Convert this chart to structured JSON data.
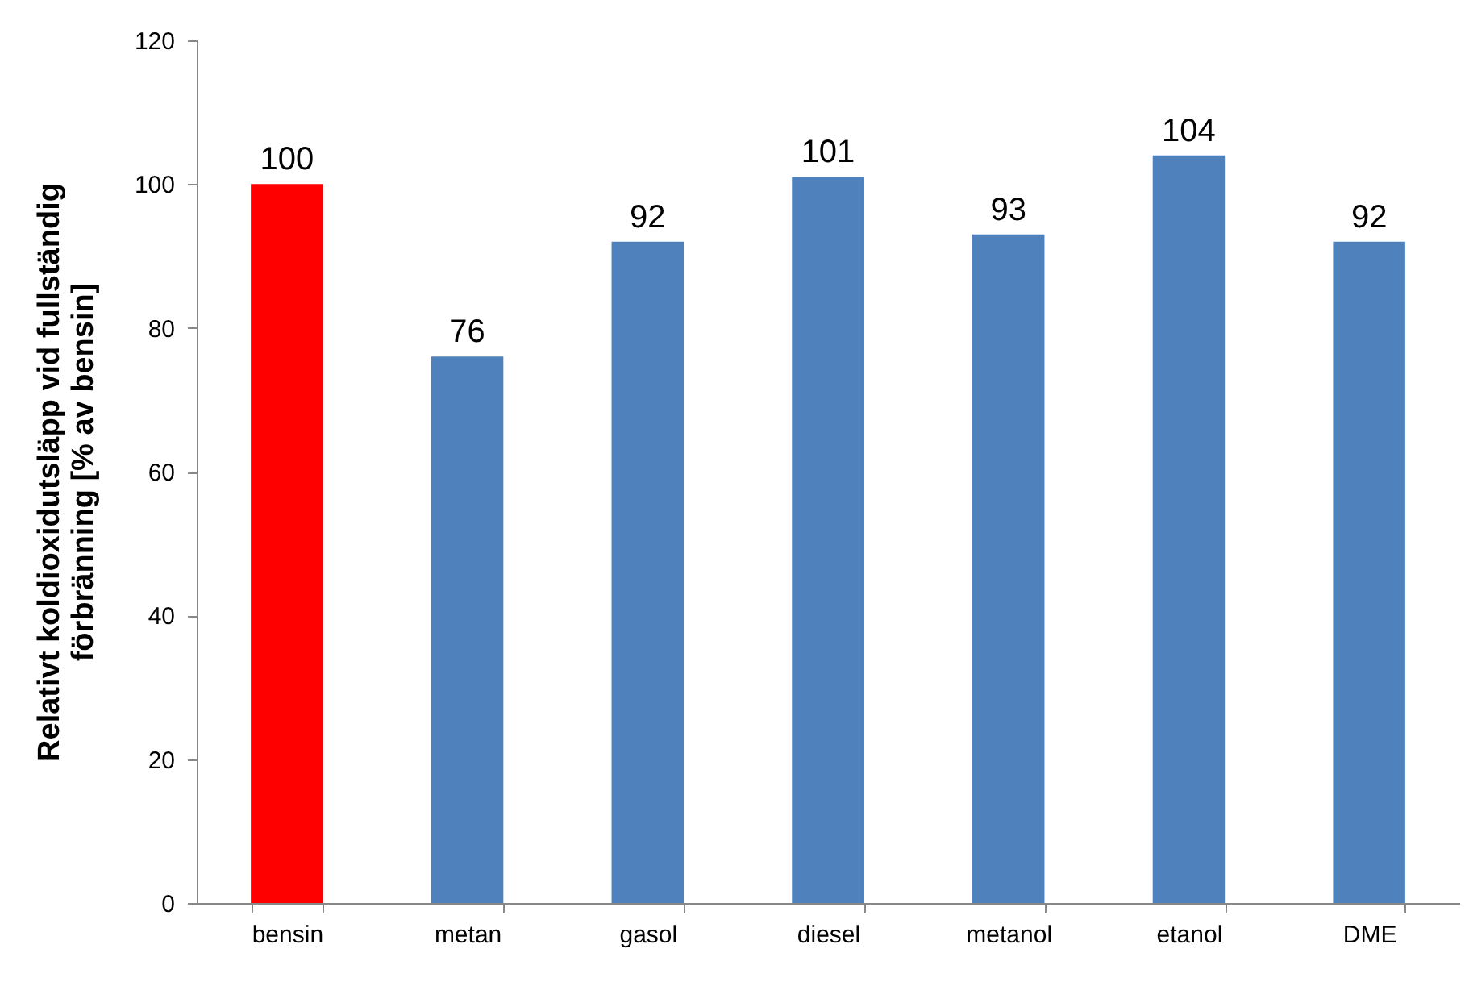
{
  "chart_data": {
    "type": "bar",
    "ylabel": "Relativt koldioxidutsläpp vid fullständig\nförbränning [% av bensin]",
    "categories": [
      "bensin",
      "metan",
      "gasol",
      "diesel",
      "metanol",
      "etanol",
      "DME"
    ],
    "values": [
      100,
      76,
      92,
      101,
      93,
      104,
      92
    ],
    "colors": [
      "#ff0000",
      "#4f81bd",
      "#4f81bd",
      "#4f81bd",
      "#4f81bd",
      "#4f81bd",
      "#4f81bd"
    ],
    "ylim": [
      0,
      120
    ],
    "yticks": [
      0,
      20,
      40,
      60,
      80,
      100,
      120
    ],
    "data_labels": true
  }
}
